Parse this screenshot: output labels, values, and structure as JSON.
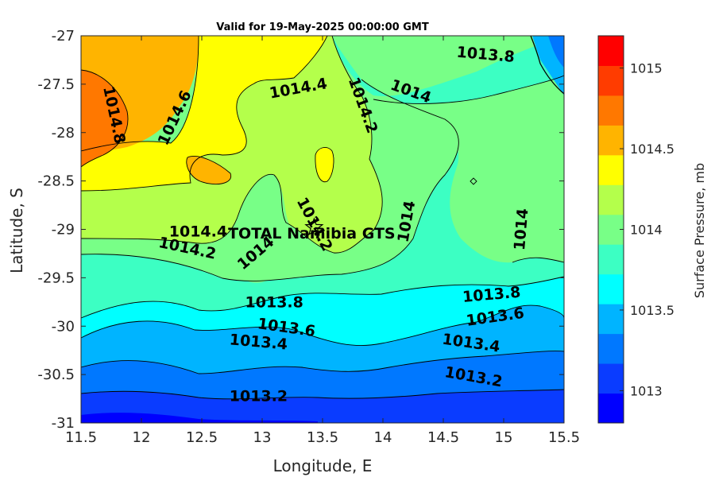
{
  "chart_data": {
    "type": "heatmap",
    "subtype": "filled-contour",
    "title": "Valid for 19-May-2025 00:00:00 GMT",
    "xlabel": "Longitude, E",
    "ylabel": "Latitude, S",
    "xlim": [
      11.5,
      15.5
    ],
    "ylim": [
      -31,
      -27
    ],
    "xticks": [
      "11.5",
      "12",
      "12.5",
      "13",
      "13.5",
      "14",
      "14.5",
      "15",
      "15.5"
    ],
    "yticks": [
      "-27",
      "-27.5",
      "-28",
      "-28.5",
      "-29",
      "-29.5",
      "-30",
      "-30.5",
      "-31"
    ],
    "colorbar": {
      "label": "Surface Pressure, mb",
      "range": [
        1012.8,
        1015.2
      ],
      "step": 0.2,
      "ticks": [
        "1013",
        "1013.5",
        "1014",
        "1014.5",
        "1015"
      ],
      "colors": [
        "#0000ff",
        "#0a3cff",
        "#0078ff",
        "#00b4ff",
        "#00ffff",
        "#3cffc3",
        "#78ff87",
        "#b4ff4b",
        "#ffff00",
        "#ffb400",
        "#ff7800",
        "#ff3c00",
        "#ff0000"
      ]
    },
    "contour_labels": [
      {
        "text": "1014.8",
        "lon": 11.77,
        "lat": -27.82
      },
      {
        "text": "1014.6",
        "lon": 12.28,
        "lat": -27.85
      },
      {
        "text": "1014.4",
        "lon": 13.3,
        "lat": -27.55
      },
      {
        "text": "1014.2",
        "lon": 13.83,
        "lat": -27.72
      },
      {
        "text": "1014",
        "lon": 14.23,
        "lat": -27.58
      },
      {
        "text": "1013.8",
        "lon": 14.85,
        "lat": -27.2
      },
      {
        "text": "1014.4",
        "lon": 12.47,
        "lat": -29.03
      },
      {
        "text": "1014.2",
        "lon": 12.38,
        "lat": -29.2
      },
      {
        "text": "1014.2",
        "lon": 13.43,
        "lat": -28.95
      },
      {
        "text": "1014",
        "lon": 12.95,
        "lat": -29.25
      },
      {
        "text": "1014",
        "lon": 14.2,
        "lat": -28.92
      },
      {
        "text": "1014",
        "lon": 15.15,
        "lat": -29.0
      },
      {
        "text": "1013.8",
        "lon": 13.1,
        "lat": -29.76
      },
      {
        "text": "1013.6",
        "lon": 13.2,
        "lat": -30.02
      },
      {
        "text": "1013.4",
        "lon": 12.97,
        "lat": -30.17
      },
      {
        "text": "1013.2",
        "lon": 12.97,
        "lat": -30.73
      },
      {
        "text": "1013.8",
        "lon": 14.9,
        "lat": -29.68
      },
      {
        "text": "1013.6",
        "lon": 14.93,
        "lat": -29.91
      },
      {
        "text": "1013.4",
        "lon": 14.73,
        "lat": -30.18
      },
      {
        "text": "1013.2",
        "lon": 14.75,
        "lat": -30.53
      }
    ],
    "site": {
      "name": "TOTAL Namibia GTS",
      "lon": 13.43,
      "lat": -28.98
    }
  }
}
